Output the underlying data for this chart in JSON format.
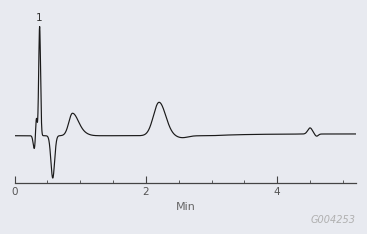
{
  "background_color": "#e8eaf0",
  "line_color": "#1a1a1a",
  "xlabel": "Min",
  "xlabel_color": "#666666",
  "watermark": "G004253",
  "watermark_color": "#b0b0b0",
  "peak_label": "1",
  "xlim": [
    0,
    5.2
  ],
  "ylim": [
    -0.42,
    1.05
  ],
  "xticks": [
    0,
    2,
    4
  ],
  "figsize": [
    3.67,
    2.34
  ],
  "dpi": 100
}
